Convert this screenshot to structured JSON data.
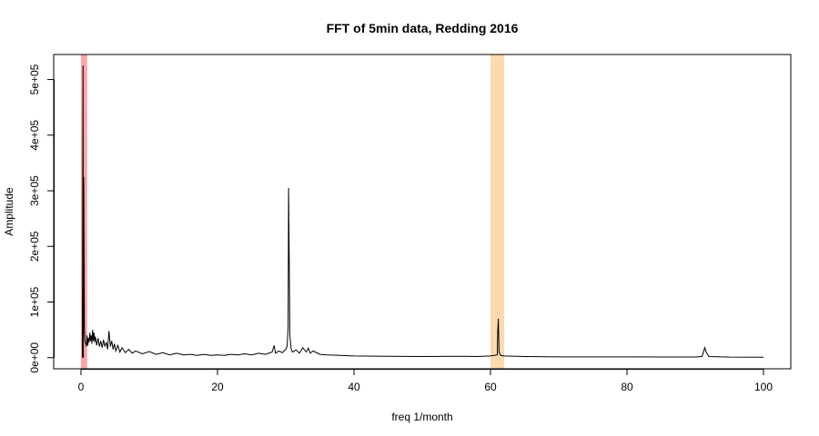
{
  "chart_data": {
    "type": "line",
    "title": "FFT of 5min data, Redding 2016",
    "xlabel": "freq 1/month",
    "ylabel": "Amplitude",
    "xlim": [
      -4,
      104
    ],
    "ylim": [
      -20000,
      545000
    ],
    "x_ticks": [
      0,
      20,
      40,
      60,
      80,
      100
    ],
    "x_tick_labels": [
      "0",
      "20",
      "40",
      "60",
      "80",
      "100"
    ],
    "y_ticks": [
      0,
      100000,
      200000,
      300000,
      400000,
      500000
    ],
    "y_tick_labels": [
      "0e+00",
      "1e+05",
      "2e+05",
      "3e+05",
      "4e+05",
      "5e+05"
    ],
    "grid": false,
    "highlight_bands": [
      {
        "from": 0.0,
        "to": 0.9,
        "color": "#ff9999"
      },
      {
        "from": 60.0,
        "to": 62.0,
        "color": "#fad6a5"
      }
    ],
    "series": [
      {
        "color": "#000000",
        "points": [
          [
            0.2,
            0
          ],
          [
            0.3,
            525000
          ],
          [
            0.35,
            0
          ],
          [
            0.4,
            325000
          ],
          [
            0.5,
            50000
          ],
          [
            0.6,
            30000
          ],
          [
            0.8,
            20000
          ],
          [
            0.9,
            40000
          ],
          [
            1.0,
            22000
          ],
          [
            1.1,
            35000
          ],
          [
            1.2,
            28000
          ],
          [
            1.3,
            45000
          ],
          [
            1.4,
            30000
          ],
          [
            1.5,
            40000
          ],
          [
            1.6,
            25000
          ],
          [
            1.7,
            50000
          ],
          [
            1.8,
            30000
          ],
          [
            1.9,
            45000
          ],
          [
            2.0,
            28000
          ],
          [
            2.1,
            38000
          ],
          [
            2.3,
            22000
          ],
          [
            2.5,
            35000
          ],
          [
            2.7,
            20000
          ],
          [
            2.9,
            30000
          ],
          [
            3.1,
            18000
          ],
          [
            3.3,
            32000
          ],
          [
            3.5,
            20000
          ],
          [
            3.7,
            28000
          ],
          [
            3.9,
            15000
          ],
          [
            4.1,
            48000
          ],
          [
            4.3,
            20000
          ],
          [
            4.5,
            30000
          ],
          [
            4.7,
            15000
          ],
          [
            4.9,
            25000
          ],
          [
            5.1,
            12000
          ],
          [
            5.4,
            22000
          ],
          [
            5.7,
            10000
          ],
          [
            6.0,
            18000
          ],
          [
            6.5,
            9000
          ],
          [
            7.0,
            15000
          ],
          [
            7.5,
            8000
          ],
          [
            8.0,
            12000
          ],
          [
            9.0,
            7000
          ],
          [
            10.0,
            11000
          ],
          [
            11.0,
            6000
          ],
          [
            12.0,
            9000
          ],
          [
            13.0,
            5000
          ],
          [
            14.0,
            8000
          ],
          [
            15.0,
            5000
          ],
          [
            16.0,
            6000
          ],
          [
            17.0,
            4000
          ],
          [
            18.0,
            6000
          ],
          [
            19.0,
            4000
          ],
          [
            20.0,
            5000
          ],
          [
            21.0,
            4000
          ],
          [
            22.0,
            6000
          ],
          [
            23.0,
            5000
          ],
          [
            24.0,
            7000
          ],
          [
            25.0,
            5000
          ],
          [
            26.0,
            8000
          ],
          [
            27.0,
            6000
          ],
          [
            28.0,
            10000
          ],
          [
            28.3,
            22000
          ],
          [
            28.5,
            8000
          ],
          [
            29.0,
            12000
          ],
          [
            29.5,
            9000
          ],
          [
            30.0,
            15000
          ],
          [
            30.2,
            20000
          ],
          [
            30.35,
            55000
          ],
          [
            30.42,
            305000
          ],
          [
            30.5,
            190000
          ],
          [
            30.6,
            40000
          ],
          [
            30.8,
            15000
          ],
          [
            31.0,
            10000
          ],
          [
            31.5,
            14000
          ],
          [
            32.0,
            8000
          ],
          [
            32.5,
            18000
          ],
          [
            33.0,
            10000
          ],
          [
            33.3,
            17000
          ],
          [
            33.6,
            8000
          ],
          [
            34.0,
            12000
          ],
          [
            35.0,
            6000
          ],
          [
            36.0,
            5000
          ],
          [
            38.0,
            4000
          ],
          [
            40.0,
            3000
          ],
          [
            45.0,
            2500
          ],
          [
            50.0,
            2000
          ],
          [
            55.0,
            2500
          ],
          [
            58.0,
            2000
          ],
          [
            60.0,
            3000
          ],
          [
            61.0,
            5000
          ],
          [
            61.05,
            45000
          ],
          [
            61.15,
            70000
          ],
          [
            61.25,
            10000
          ],
          [
            61.5,
            4000
          ],
          [
            62.0,
            3000
          ],
          [
            65.0,
            2000
          ],
          [
            70.0,
            1500
          ],
          [
            75.0,
            1500
          ],
          [
            80.0,
            1500
          ],
          [
            85.0,
            1200
          ],
          [
            90.0,
            1200
          ],
          [
            91.0,
            2000
          ],
          [
            91.4,
            18000
          ],
          [
            91.6,
            10000
          ],
          [
            92.0,
            2000
          ],
          [
            95.0,
            1000
          ],
          [
            100.0,
            800
          ]
        ]
      }
    ]
  }
}
